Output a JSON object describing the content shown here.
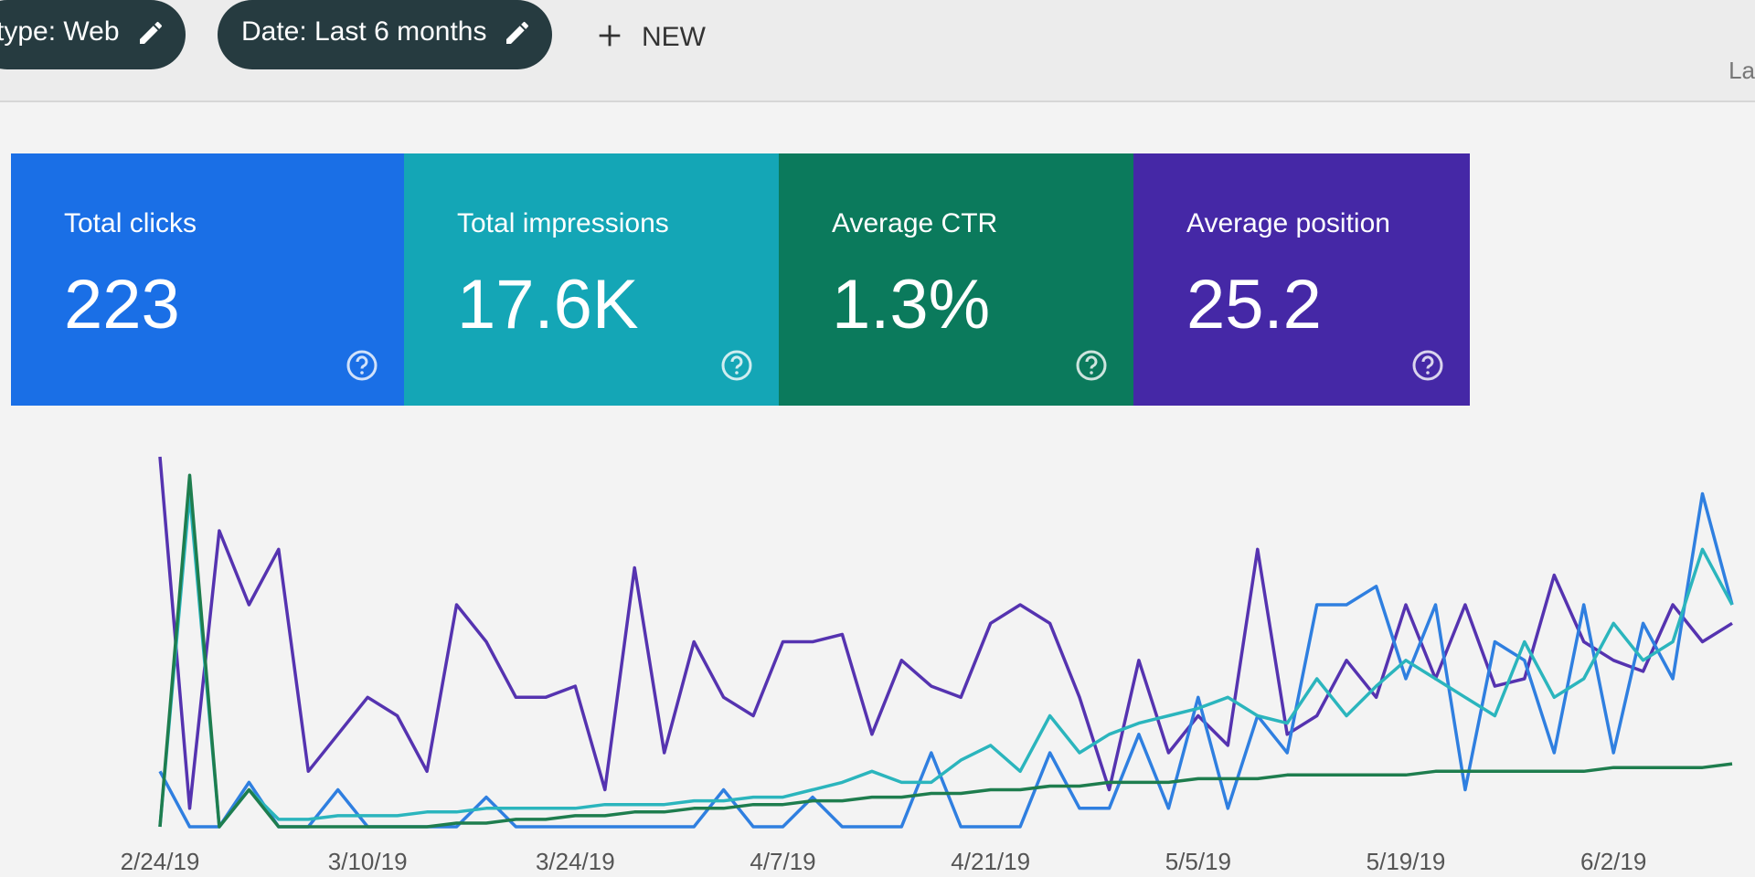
{
  "toolbar": {
    "chips": [
      "type: Web",
      "Date: Last 6 months"
    ],
    "new_button": "NEW",
    "right_text": "La"
  },
  "cards": [
    {
      "label": "Total clicks",
      "value": "223",
      "color": "#1a6fe6"
    },
    {
      "label": "Total impressions",
      "value": "17.6K",
      "color": "#14a6b6"
    },
    {
      "label": "Average CTR",
      "value": "1.3%",
      "color": "#0b7a5c"
    },
    {
      "label": "Average position",
      "value": "25.2",
      "color": "#4528a6"
    }
  ],
  "chart_data": {
    "type": "line",
    "categories": [
      "2/24/19",
      null,
      null,
      null,
      null,
      null,
      null,
      "3/10/19",
      null,
      null,
      null,
      null,
      null,
      null,
      "3/24/19",
      null,
      null,
      null,
      null,
      null,
      null,
      "4/7/19",
      null,
      null,
      null,
      null,
      null,
      null,
      "4/21/19",
      null,
      null,
      null,
      null,
      null,
      null,
      "5/5/19",
      null,
      null,
      null,
      null,
      null,
      null,
      "5/19/19",
      null,
      null,
      null,
      null,
      null,
      null,
      "6/2/19",
      null,
      null,
      null,
      null
    ],
    "series": [
      {
        "color": "#5533b0",
        "values": [
          100,
          5,
          80,
          60,
          75,
          15,
          25,
          35,
          30,
          15,
          60,
          50,
          35,
          35,
          38,
          10,
          70,
          20,
          50,
          35,
          30,
          50,
          50,
          52,
          25,
          45,
          38,
          35,
          55,
          60,
          55,
          35,
          10,
          45,
          20,
          30,
          22,
          75,
          25,
          30,
          45,
          35,
          60,
          40,
          60,
          38,
          40,
          68,
          50,
          45,
          42,
          60,
          50,
          55
        ]
      },
      {
        "color": "#2f7fe0",
        "values": [
          15,
          0,
          0,
          12,
          0,
          0,
          10,
          0,
          0,
          0,
          0,
          8,
          0,
          0,
          0,
          0,
          0,
          0,
          0,
          10,
          0,
          0,
          8,
          0,
          0,
          0,
          20,
          0,
          0,
          0,
          20,
          5,
          5,
          25,
          5,
          35,
          5,
          30,
          20,
          60,
          60,
          65,
          40,
          60,
          10,
          50,
          45,
          20,
          60,
          20,
          55,
          40,
          90,
          60
        ]
      },
      {
        "color": "#2bb5bd",
        "values": [
          0,
          90,
          0,
          10,
          2,
          2,
          3,
          3,
          3,
          4,
          4,
          5,
          5,
          5,
          5,
          6,
          6,
          6,
          7,
          7,
          8,
          8,
          10,
          12,
          15,
          12,
          12,
          18,
          22,
          15,
          30,
          20,
          25,
          28,
          30,
          32,
          35,
          30,
          28,
          40,
          30,
          38,
          45,
          40,
          35,
          30,
          50,
          35,
          40,
          55,
          45,
          50,
          75,
          60
        ]
      },
      {
        "color": "#1e7d4e",
        "values": [
          0,
          95,
          0,
          10,
          0,
          0,
          0,
          0,
          0,
          0,
          1,
          1,
          2,
          2,
          3,
          3,
          4,
          4,
          5,
          5,
          6,
          6,
          7,
          7,
          8,
          8,
          9,
          9,
          10,
          10,
          11,
          11,
          12,
          12,
          12,
          13,
          13,
          13,
          14,
          14,
          14,
          14,
          14,
          15,
          15,
          15,
          15,
          15,
          15,
          16,
          16,
          16,
          16,
          17
        ]
      }
    ]
  }
}
